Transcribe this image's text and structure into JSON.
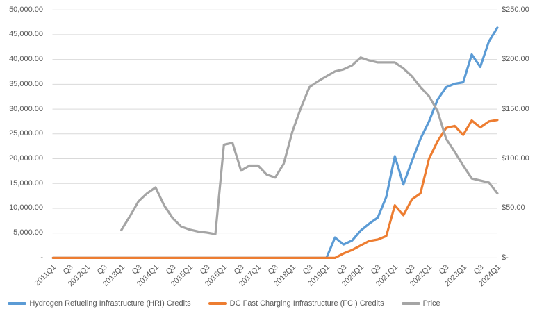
{
  "chart_data": {
    "type": "line",
    "title": "",
    "grid": true,
    "legend_position": "bottom",
    "gridline_color": "#D9D9D9",
    "label_color": "#595959",
    "categories": [
      "2011Q1",
      "2011Q2",
      "2011Q3",
      "2011Q4",
      "2012Q1",
      "2012Q2",
      "2012Q3",
      "2012Q4",
      "2013Q1",
      "2013Q2",
      "2013Q3",
      "2013Q4",
      "2014Q1",
      "2014Q2",
      "2014Q3",
      "2014Q4",
      "2015Q1",
      "2015Q2",
      "2015Q3",
      "2015Q4",
      "2016Q1",
      "2016Q2",
      "2016Q3",
      "2016Q4",
      "2017Q1",
      "2017Q2",
      "2017Q3",
      "2017Q4",
      "2018Q1",
      "2018Q2",
      "2018Q3",
      "2018Q4",
      "2019Q1",
      "2019Q2",
      "2019Q3",
      "2019Q4",
      "2020Q1",
      "2020Q2",
      "2020Q3",
      "2020Q4",
      "2021Q1",
      "2021Q2",
      "2021Q3",
      "2021Q4",
      "2022Q1",
      "2022Q2",
      "2022Q3",
      "2022Q4",
      "2023Q1",
      "2023Q2",
      "2023Q3",
      "2023Q4",
      "2024Q1"
    ],
    "x_tick_labels": [
      "2011Q1",
      "Q3",
      "2012Q1",
      "Q3",
      "2013Q1",
      "Q3",
      "2014Q1",
      "Q3",
      "2015Q1",
      "Q3",
      "2016Q1",
      "Q3",
      "2017Q1",
      "Q3",
      "2018Q1",
      "Q3",
      "2019Q1",
      "Q3",
      "2020Q1",
      "Q3",
      "2021Q1",
      "Q3",
      "2022Q1",
      "Q3",
      "2023Q1",
      "Q3",
      "2024Q1"
    ],
    "left_axis": {
      "min": 0,
      "max": 50000,
      "labels": [
        "50,000.00",
        "45,000.00",
        "40,000.00",
        "35,000.00",
        "30,000.00",
        "25,000.00",
        "20,000.00",
        "15,000.00",
        "10,000.00",
        "5,000.00",
        "-"
      ]
    },
    "right_axis": {
      "min": 0,
      "max": 250,
      "labels": [
        "$250.00",
        "$200.00",
        "$150.00",
        "$100.00",
        "$50.00",
        "$-"
      ]
    },
    "series": [
      {
        "name": "Hydrogen Refueling Infrastructure (HRI) Credits",
        "axis": "left",
        "color": "#5B9BD5",
        "values": [
          0,
          0,
          0,
          0,
          0,
          0,
          0,
          0,
          0,
          0,
          0,
          0,
          0,
          0,
          0,
          0,
          0,
          0,
          0,
          0,
          0,
          0,
          0,
          0,
          0,
          0,
          0,
          0,
          0,
          0,
          0,
          0,
          0,
          4100,
          2700,
          3500,
          5500,
          6900,
          8100,
          12300,
          20500,
          14800,
          19500,
          24000,
          27500,
          31900,
          34400,
          35100,
          35400,
          41000,
          38500,
          43600,
          46400
        ]
      },
      {
        "name": "DC Fast Charging Infrastructure (FCI) Credits",
        "axis": "left",
        "color": "#ED7D31",
        "values": [
          0,
          0,
          0,
          0,
          0,
          0,
          0,
          0,
          0,
          0,
          0,
          0,
          0,
          0,
          0,
          0,
          0,
          0,
          0,
          0,
          0,
          0,
          0,
          0,
          0,
          0,
          0,
          0,
          0,
          0,
          0,
          0,
          0,
          0,
          900,
          1600,
          2500,
          3400,
          3700,
          4400,
          10600,
          8600,
          11800,
          13000,
          20000,
          23500,
          26200,
          26600,
          24800,
          27700,
          26300,
          27500,
          27800
        ]
      },
      {
        "name": "Price",
        "axis": "right",
        "color": "#A5A5A5",
        "values": [
          null,
          null,
          null,
          null,
          null,
          null,
          null,
          null,
          28,
          42,
          57,
          65,
          71,
          53,
          40,
          31.5,
          28.5,
          26.5,
          25.5,
          24,
          114,
          116,
          88,
          93,
          93,
          84,
          81,
          95,
          127,
          151,
          172,
          178,
          183,
          188,
          190,
          194,
          202,
          199,
          197,
          197,
          197,
          191,
          183,
          172,
          163,
          148,
          120,
          107,
          93,
          80,
          78,
          76,
          65
        ]
      }
    ]
  }
}
